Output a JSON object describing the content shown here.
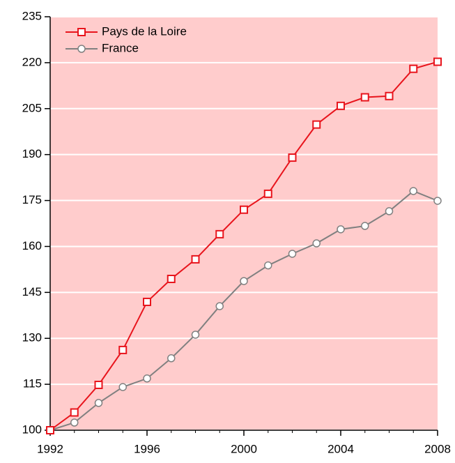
{
  "chart_data": {
    "type": "line",
    "x": [
      1992,
      1993,
      1994,
      1995,
      1996,
      1997,
      1998,
      1999,
      2000,
      2001,
      2002,
      2003,
      2004,
      2005,
      2006,
      2007,
      2008
    ],
    "series": [
      {
        "name": "Pays de la Loire",
        "color": "#e8141c",
        "marker": "square",
        "values": [
          100,
          105.8,
          114.8,
          126.2,
          141.9,
          149.4,
          155.8,
          164,
          172,
          177.2,
          189,
          199.8,
          205.9,
          208.7,
          209.1,
          218,
          220.3
        ]
      },
      {
        "name": "France",
        "color": "#808080",
        "marker": "circle",
        "values": [
          100,
          102.5,
          108.9,
          114.1,
          116.9,
          123.5,
          131.2,
          140.5,
          148.7,
          153.8,
          157.6,
          161,
          165.6,
          166.7,
          171.5,
          178.1,
          174.9
        ]
      }
    ],
    "xlim": [
      1992,
      2008
    ],
    "xticks": [
      1992,
      1996,
      2000,
      2004,
      2008
    ],
    "ylim": [
      100,
      235
    ],
    "yticks": [
      100,
      115,
      130,
      145,
      160,
      175,
      190,
      205,
      220,
      235
    ],
    "grid": true,
    "legend": "top-left",
    "background": "#ffcccc"
  }
}
